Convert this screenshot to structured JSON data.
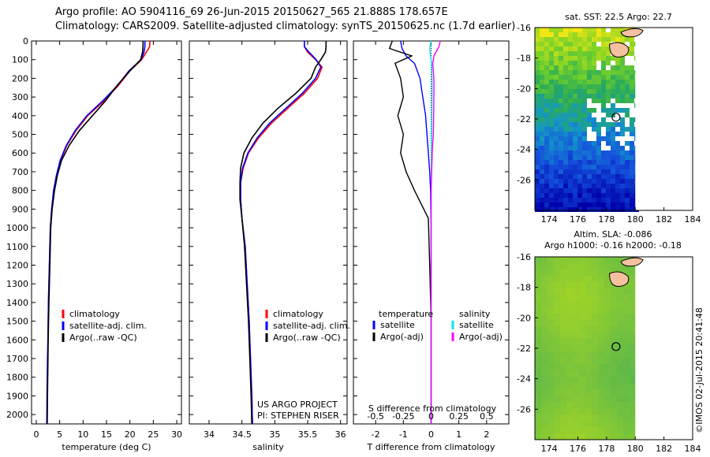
{
  "header": {
    "line1": "Argo profile: AO 5904116_69 26-Jun-2015 20150627_565 21.888S 178.657E",
    "line2": "Climatology: CARS2009. Satellite-adjusted climatology: synTS_20150625.nc (1.7d earlier)"
  },
  "colors": {
    "climatology": "#ff0000",
    "satellite": "#0000ff",
    "argo": "#000000",
    "satellite_s": "#00e5ee",
    "argo_s": "#ff00ff",
    "map_land": "#f5c0a0"
  },
  "chart_data": [
    {
      "type": "line",
      "name": "temperature-panel",
      "xlabel": "temperature (deg C)",
      "ylabel": "",
      "xlim": [
        -1,
        31
      ],
      "ylim": [
        0,
        2050
      ],
      "y_inverted": true,
      "xticks": [
        "0",
        "5",
        "10",
        "15",
        "20",
        "25",
        "30"
      ],
      "yticks": [
        "0",
        "100",
        "200",
        "300",
        "400",
        "500",
        "600",
        "700",
        "800",
        "900",
        "1000",
        "1100",
        "1200",
        "1300",
        "1400",
        "1500",
        "1600",
        "1700",
        "1800",
        "1900",
        "2000"
      ],
      "legend": [
        {
          "label": "climatology",
          "color": "#ff0000"
        },
        {
          "label": "satellite-adj. clim.",
          "color": "#0000ff"
        },
        {
          "label": "Argo(..raw -QC)",
          "color": "#000000"
        }
      ],
      "series": [
        {
          "name": "climatology",
          "color": "#ff0000",
          "x": [
            24.3,
            24.2,
            23.5,
            22.5,
            20.0,
            17.5,
            14.5,
            11.0,
            8.5,
            6.5,
            5.2,
            4.4,
            3.8,
            3.3,
            3.0,
            2.8,
            2.6,
            2.5,
            2.45,
            2.4,
            2.35,
            2.3
          ],
          "y": [
            0,
            30,
            60,
            100,
            160,
            240,
            320,
            400,
            480,
            560,
            640,
            720,
            800,
            900,
            1000,
            1200,
            1400,
            1600,
            1700,
            1800,
            1900,
            2050
          ]
        },
        {
          "name": "satellite-adj. clim.",
          "color": "#0000ff",
          "x": [
            23.2,
            23.2,
            23.0,
            22.4,
            19.8,
            17.3,
            14.2,
            10.8,
            8.3,
            6.4,
            5.1,
            4.3,
            3.7,
            3.3,
            3.0,
            2.8,
            2.6,
            2.5,
            2.4,
            2.35,
            2.3,
            2.25
          ],
          "y": [
            0,
            30,
            60,
            100,
            160,
            240,
            320,
            400,
            480,
            560,
            640,
            720,
            800,
            900,
            1000,
            1200,
            1400,
            1600,
            1700,
            1800,
            1900,
            2050
          ]
        },
        {
          "name": "Argo(..raw -QC)",
          "color": "#000000",
          "x": [
            22.8,
            22.8,
            22.7,
            22.3,
            20.0,
            17.2,
            14.8,
            12.0,
            9.2,
            7.0,
            5.4,
            4.5,
            3.9,
            3.4,
            3.1,
            2.9,
            2.7,
            2.55,
            2.5,
            2.45,
            2.4,
            2.35
          ],
          "y": [
            0,
            30,
            60,
            100,
            160,
            240,
            320,
            400,
            480,
            560,
            640,
            720,
            800,
            900,
            1000,
            1200,
            1400,
            1600,
            1700,
            1800,
            1900,
            2050
          ]
        }
      ]
    },
    {
      "type": "line",
      "name": "salinity-panel",
      "xlabel": "salinity",
      "ylabel": "",
      "xlim": [
        33.7,
        36.1
      ],
      "ylim": [
        0,
        2050
      ],
      "y_inverted": true,
      "xticks": [
        "34",
        "34.5",
        "35",
        "35.5",
        "36"
      ],
      "legend": [
        {
          "label": "climatology",
          "color": "#ff0000"
        },
        {
          "label": "satellite-adj. clim.",
          "color": "#0000ff"
        },
        {
          "label": "Argo(..raw -QC)",
          "color": "#000000"
        }
      ],
      "annotation": [
        "US ARGO PROJECT",
        "PI: STEPHEN RISER"
      ],
      "series": [
        {
          "name": "climatology",
          "color": "#ff0000",
          "x": [
            35.45,
            35.45,
            35.5,
            35.62,
            35.72,
            35.65,
            35.45,
            35.2,
            34.95,
            34.75,
            34.6,
            34.52,
            34.48,
            34.48,
            34.5,
            34.55,
            34.58,
            34.61,
            34.63,
            34.65,
            34.66
          ],
          "y": [
            0,
            30,
            60,
            100,
            140,
            200,
            280,
            360,
            440,
            520,
            600,
            680,
            760,
            850,
            950,
            1100,
            1300,
            1500,
            1700,
            1900,
            2050
          ]
        },
        {
          "name": "satellite-adj. clim.",
          "color": "#0000ff",
          "x": [
            35.45,
            35.45,
            35.52,
            35.63,
            35.7,
            35.62,
            35.42,
            35.17,
            34.92,
            34.73,
            34.59,
            34.51,
            34.48,
            34.48,
            34.5,
            34.55,
            34.58,
            34.61,
            34.63,
            34.65,
            34.66
          ],
          "y": [
            0,
            30,
            60,
            100,
            140,
            200,
            280,
            360,
            440,
            520,
            600,
            680,
            760,
            850,
            950,
            1100,
            1300,
            1500,
            1700,
            1900,
            2050
          ]
        },
        {
          "name": "Argo(..raw -QC)",
          "color": "#000000",
          "x": [
            35.78,
            35.78,
            35.77,
            35.7,
            35.62,
            35.55,
            35.32,
            35.05,
            34.82,
            34.65,
            34.53,
            34.48,
            34.47,
            34.47,
            34.5,
            34.54,
            34.57,
            34.6,
            34.62,
            34.64,
            34.65
          ],
          "y": [
            0,
            30,
            60,
            100,
            140,
            200,
            280,
            360,
            440,
            520,
            600,
            680,
            760,
            850,
            950,
            1100,
            1300,
            1500,
            1700,
            1900,
            2050
          ]
        }
      ]
    },
    {
      "type": "line",
      "name": "difference-panel",
      "xlabel": "T difference from climatology",
      "top_axis_label": "S difference from climatology",
      "xlim": [
        -2.8,
        2.8
      ],
      "ylim": [
        0,
        2050
      ],
      "y_inverted": true,
      "xticks": [
        "-2",
        "-1",
        "0",
        "1",
        "2"
      ],
      "top_ticks": [
        "-0.5",
        "-0.25",
        "0",
        "0.25",
        "0.5"
      ],
      "legend_titles": {
        "temperature": "temperature",
        "salinity": "salinity"
      },
      "legend": [
        {
          "label": "satellite",
          "color": "#0000ff"
        },
        {
          "label": "Argo(-adj)",
          "color": "#000000"
        },
        {
          "label": "satellite",
          "color": "#00e5ee"
        },
        {
          "label": "Argo(-adj)",
          "color": "#ff00ff"
        }
      ],
      "series": [
        {
          "name": "T satellite",
          "color": "#0000ff",
          "x": [
            -1.1,
            -1.05,
            -0.9,
            -0.6,
            -0.4,
            -0.3,
            -0.2,
            -0.15,
            -0.1,
            -0.05,
            -0.02,
            0,
            0,
            0,
            0
          ],
          "y": [
            0,
            40,
            80,
            120,
            200,
            300,
            400,
            500,
            600,
            700,
            800,
            1000,
            1400,
            1800,
            2050
          ]
        },
        {
          "name": "T Argo(-adj)",
          "color": "#000000",
          "x": [
            -1.4,
            -1.5,
            -0.7,
            -1.3,
            -1.1,
            -1.0,
            -1.2,
            -1.0,
            -1.1,
            -0.9,
            -0.6,
            -0.1,
            -0.05,
            0,
            0,
            0
          ],
          "y": [
            0,
            40,
            80,
            120,
            200,
            300,
            400,
            500,
            600,
            700,
            800,
            950,
            1200,
            1500,
            1800,
            2050
          ]
        },
        {
          "name": "S satellite",
          "color": "#00e5ee",
          "x": [
            0.0,
            -0.05,
            -0.02,
            0.02,
            0.03,
            0.03,
            0.02,
            0.01,
            0.0,
            0.0,
            0.0
          ],
          "y": [
            0,
            40,
            80,
            120,
            200,
            300,
            500,
            700,
            1000,
            1500,
            2050
          ]
        },
        {
          "name": "S Argo(-adj)",
          "color": "#ff00ff",
          "x": [
            0.33,
            0.28,
            0.1,
            0.06,
            0.1,
            0.1,
            0.09,
            0.08,
            0.04,
            0.02,
            0.0,
            0.0,
            0.0
          ],
          "y": [
            0,
            30,
            80,
            120,
            200,
            300,
            400,
            500,
            600,
            700,
            800,
            1000,
            2050
          ]
        }
      ]
    },
    {
      "type": "heatmap",
      "name": "sst-map",
      "title": "sat. SST: 22.5  Argo: 22.7",
      "xlim": [
        173,
        184
      ],
      "ylim": [
        -28,
        -16
      ],
      "xticks": [
        "174",
        "176",
        "178",
        "180",
        "182",
        "184"
      ],
      "yticks": [
        "-16",
        "-18",
        "-20",
        "-22",
        "-24",
        "-26"
      ],
      "marker": {
        "lon": 178.657,
        "lat": -21.888
      }
    },
    {
      "type": "heatmap",
      "name": "sla-map",
      "title": "Altim. SLA: -0.086",
      "subtitle": "Argo h1000: -0.16 h2000: -0.18",
      "xlim": [
        173,
        184
      ],
      "ylim": [
        -28,
        -16
      ],
      "xticks": [
        "174",
        "176",
        "178",
        "180",
        "182",
        "184"
      ],
      "yticks": [
        "-16",
        "-18",
        "-20",
        "-22",
        "-24",
        "-26"
      ],
      "marker": {
        "lon": 178.657,
        "lat": -21.888
      }
    }
  ],
  "credit": "©IMOS 02-Jul-2015 20:41:48"
}
